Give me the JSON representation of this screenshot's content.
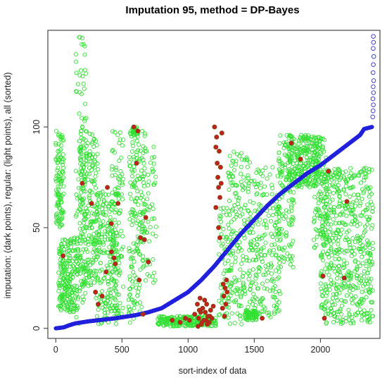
{
  "chart_data": {
    "type": "scatter",
    "title": "Imputation 95,   method = DP-Bayes",
    "xlabel": "sort-index of data",
    "ylabel": "imputation: (dark points),  regular: (light points),  all (sorted)",
    "xlim": [
      -60,
      2450
    ],
    "ylim": [
      -5,
      148
    ],
    "x_ticks": [
      0,
      500,
      1000,
      1500,
      2000
    ],
    "y_ticks": [
      0,
      50,
      100
    ],
    "x_tick_labels": [
      "0",
      "500",
      "1000",
      "1500",
      "2000"
    ],
    "y_tick_labels": [
      "0",
      "50",
      "100"
    ],
    "grid": false,
    "legend": "none",
    "colors": {
      "regular": "#33e033",
      "imputed": "#c81e1e",
      "imputed_edge": "#7a4a10",
      "sorted": "#2222dd",
      "sorted_top": "#3333cc"
    },
    "series": [
      {
        "role": "regular",
        "marker": "open-circle",
        "columns": [
          {
            "x": [
              0,
              60
            ],
            "ymin": 50,
            "ymax": 98,
            "n": 110
          },
          {
            "x": [
              20,
              170
            ],
            "ymin": 8,
            "ymax": 45,
            "n": 230
          },
          {
            "x": [
              150,
              230
            ],
            "ymin": 2,
            "ymax": 145,
            "n": 90
          },
          {
            "x": [
              180,
              320
            ],
            "ymin": 20,
            "ymax": 98,
            "n": 230
          },
          {
            "x": [
              300,
              480
            ],
            "ymin": 2,
            "ymax": 68,
            "n": 230
          },
          {
            "x": [
              420,
              510
            ],
            "ymin": 4,
            "ymax": 98,
            "n": 80
          },
          {
            "x": [
              550,
              660
            ],
            "ymin": 2,
            "ymax": 98,
            "n": 150
          },
          {
            "x": [
              580,
              620
            ],
            "ymin": 96,
            "ymax": 100,
            "n": 30
          },
          {
            "x": [
              650,
              760
            ],
            "ymin": 22,
            "ymax": 97,
            "n": 80
          },
          {
            "x": [
              770,
              1210
            ],
            "ymin": 1,
            "ymax": 6,
            "n": 230
          },
          {
            "x": [
              1230,
              1300
            ],
            "ymin": 4,
            "ymax": 60,
            "n": 50
          },
          {
            "x": [
              1300,
              1470
            ],
            "ymin": 2,
            "ymax": 88,
            "n": 190
          },
          {
            "x": [
              1430,
              1520
            ],
            "ymin": 4,
            "ymax": 9,
            "n": 60
          },
          {
            "x": [
              1470,
              1700
            ],
            "ymin": 5,
            "ymax": 80,
            "n": 210
          },
          {
            "x": [
              1680,
              1800
            ],
            "ymin": 30,
            "ymax": 96,
            "n": 130
          },
          {
            "x": [
              1760,
              2000
            ],
            "ymin": 70,
            "ymax": 96,
            "n": 260
          },
          {
            "x": [
              1950,
              2050
            ],
            "ymin": 40,
            "ymax": 95,
            "n": 90
          },
          {
            "x": [
              2000,
              2400
            ],
            "ymin": 2,
            "ymax": 80,
            "n": 560
          }
        ]
      },
      {
        "role": "imputed",
        "marker": "filled-circle",
        "points": [
          [
            55,
            36
          ],
          [
            200,
            72
          ],
          [
            270,
            62
          ],
          [
            390,
            70
          ],
          [
            420,
            38
          ],
          [
            440,
            35
          ],
          [
            380,
            28
          ],
          [
            450,
            32
          ],
          [
            350,
            16
          ],
          [
            320,
            12
          ],
          [
            300,
            18
          ],
          [
            610,
            82
          ],
          [
            640,
            45
          ],
          [
            670,
            44
          ],
          [
            680,
            55
          ],
          [
            700,
            33
          ],
          [
            630,
            24
          ],
          [
            660,
            7
          ],
          [
            420,
            52
          ],
          [
            470,
            62
          ],
          [
            590,
            100
          ],
          [
            620,
            98
          ],
          [
            1050,
            7
          ],
          [
            1070,
            12
          ],
          [
            1080,
            5
          ],
          [
            1090,
            15
          ],
          [
            1100,
            2
          ],
          [
            1110,
            10
          ],
          [
            1120,
            4
          ],
          [
            1130,
            8
          ],
          [
            1140,
            12
          ],
          [
            1150,
            6
          ],
          [
            1160,
            3
          ],
          [
            1170,
            9
          ],
          [
            1180,
            5
          ],
          [
            1190,
            11
          ],
          [
            1075,
            1
          ],
          [
            1095,
            8
          ],
          [
            1125,
            14
          ],
          [
            1145,
            2
          ],
          [
            1165,
            6
          ],
          [
            1105,
            3
          ],
          [
            1135,
            4
          ],
          [
            1085,
            9
          ],
          [
            1200,
            100
          ],
          [
            1210,
            90
          ],
          [
            1215,
            95
          ],
          [
            1220,
            82
          ],
          [
            1225,
            75
          ],
          [
            1230,
            70
          ],
          [
            1240,
            65
          ],
          [
            1235,
            88
          ],
          [
            1245,
            80
          ],
          [
            1250,
            72
          ],
          [
            1255,
            97
          ],
          [
            1210,
            60
          ],
          [
            1230,
            50
          ],
          [
            1240,
            45
          ],
          [
            1260,
            10
          ],
          [
            1270,
            16
          ],
          [
            1280,
            20
          ],
          [
            1290,
            24
          ],
          [
            1285,
            12
          ],
          [
            1275,
            6
          ],
          [
            1265,
            22
          ],
          [
            1295,
            18
          ],
          [
            880,
            4
          ],
          [
            940,
            3
          ],
          [
            980,
            5
          ],
          [
            1010,
            4
          ],
          [
            1780,
            92
          ],
          [
            1850,
            84
          ],
          [
            2060,
            78
          ],
          [
            2180,
            25
          ],
          [
            2020,
            26
          ],
          [
            2200,
            63
          ],
          [
            2030,
            5
          ],
          [
            1560,
            5
          ]
        ]
      },
      {
        "role": "sorted",
        "marker": "filled-circle",
        "curve": [
          [
            0,
            0
          ],
          [
            60,
            0.5
          ],
          [
            100,
            1.5
          ],
          [
            150,
            2.5
          ],
          [
            250,
            3.5
          ],
          [
            450,
            5
          ],
          [
            600,
            6.5
          ],
          [
            700,
            8
          ],
          [
            800,
            10
          ],
          [
            900,
            14
          ],
          [
            1000,
            18
          ],
          [
            1100,
            24
          ],
          [
            1200,
            31
          ],
          [
            1300,
            39
          ],
          [
            1400,
            47
          ],
          [
            1500,
            54
          ],
          [
            1600,
            61
          ],
          [
            1700,
            67
          ],
          [
            1800,
            72
          ],
          [
            1900,
            77
          ],
          [
            2000,
            81
          ],
          [
            2100,
            86
          ],
          [
            2200,
            91
          ],
          [
            2300,
            96
          ],
          [
            2330,
            99
          ],
          [
            2390,
            100
          ]
        ],
        "n": 2400,
        "top_points": [
          [
            2395,
            105
          ],
          [
            2398,
            108
          ],
          [
            2400,
            111
          ],
          [
            2397,
            114
          ],
          [
            2401,
            117
          ],
          [
            2399,
            120
          ],
          [
            2402,
            123
          ],
          [
            2398,
            127
          ],
          [
            2400,
            131
          ],
          [
            2403,
            135
          ],
          [
            2399,
            139
          ],
          [
            2401,
            142
          ],
          [
            2400,
            145
          ]
        ]
      }
    ]
  }
}
